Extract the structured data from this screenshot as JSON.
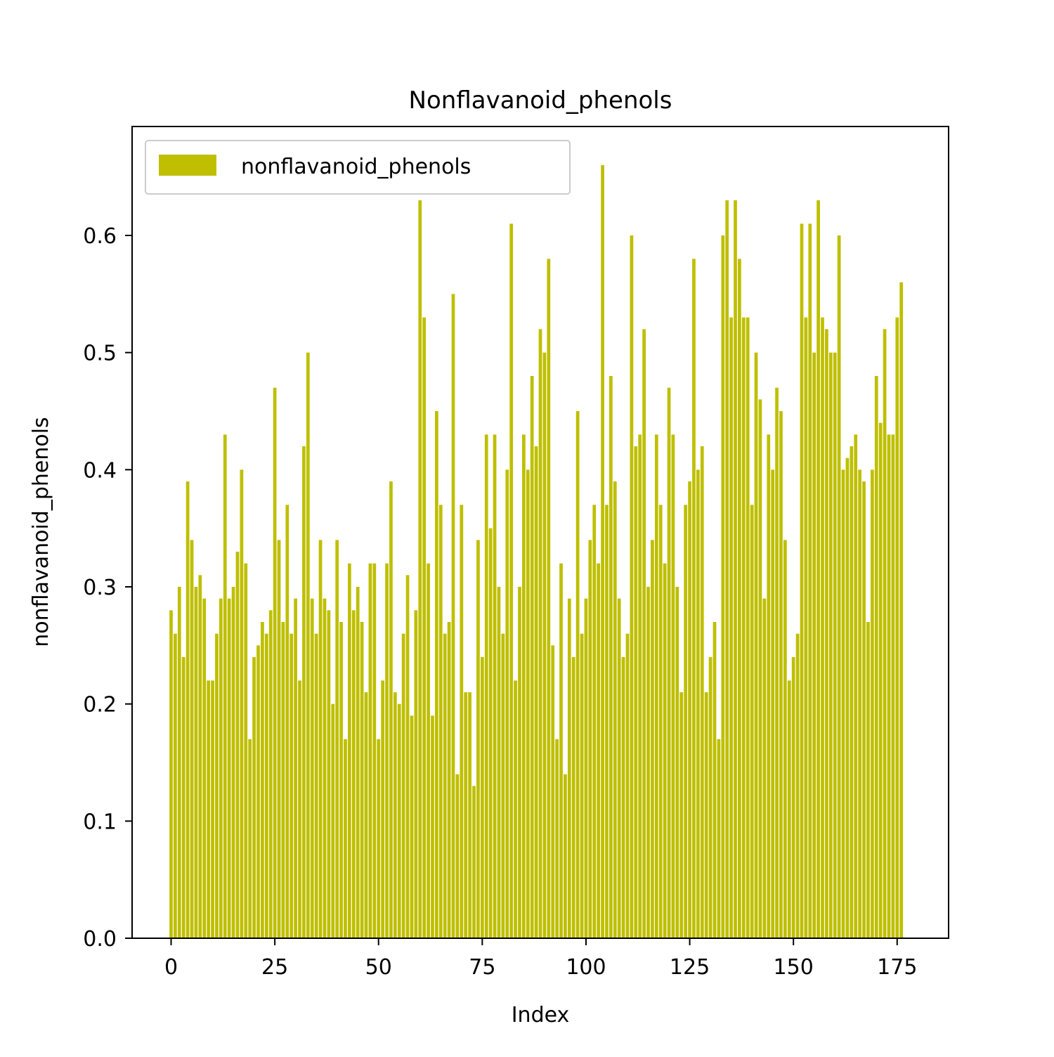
{
  "chart_data": {
    "type": "bar",
    "title": "Nonflavanoid_phenols",
    "xlabel": "Index",
    "ylabel": "nonflavanoid_phenols",
    "legend": {
      "label": "nonflavanoid_phenols",
      "placement": "top-left"
    },
    "bar_color": "#bfbf00",
    "xlim": [
      -9.4,
      187.4
    ],
    "ylim": [
      0,
      0.693
    ],
    "xticks": [
      0,
      25,
      50,
      75,
      100,
      125,
      150,
      175
    ],
    "yticks": [
      0.0,
      0.1,
      0.2,
      0.3,
      0.4,
      0.5,
      0.6
    ],
    "ytick_labels": [
      "0.0",
      "0.1",
      "0.2",
      "0.3",
      "0.4",
      "0.5",
      "0.6"
    ],
    "grid": false,
    "x": [
      0,
      1,
      2,
      3,
      4,
      5,
      6,
      7,
      8,
      9,
      10,
      11,
      12,
      13,
      14,
      15,
      16,
      17,
      18,
      19,
      20,
      21,
      22,
      23,
      24,
      25,
      26,
      27,
      28,
      29,
      30,
      31,
      32,
      33,
      34,
      35,
      36,
      37,
      38,
      39,
      40,
      41,
      42,
      43,
      44,
      45,
      46,
      47,
      48,
      49,
      50,
      51,
      52,
      53,
      54,
      55,
      56,
      57,
      58,
      59,
      60,
      61,
      62,
      63,
      64,
      65,
      66,
      67,
      68,
      69,
      70,
      71,
      72,
      73,
      74,
      75,
      76,
      77,
      78,
      79,
      80,
      81,
      82,
      83,
      84,
      85,
      86,
      87,
      88,
      89,
      90,
      91,
      92,
      93,
      94,
      95,
      96,
      97,
      98,
      99,
      100,
      101,
      102,
      103,
      104,
      105,
      106,
      107,
      108,
      109,
      110,
      111,
      112,
      113,
      114,
      115,
      116,
      117,
      118,
      119,
      120,
      121,
      122,
      123,
      124,
      125,
      126,
      127,
      128,
      129,
      130,
      131,
      132,
      133,
      134,
      135,
      136,
      137,
      138,
      139,
      140,
      141,
      142,
      143,
      144,
      145,
      146,
      147,
      148,
      149,
      150,
      151,
      152,
      153,
      154,
      155,
      156,
      157,
      158,
      159,
      160,
      161,
      162,
      163,
      164,
      165,
      166,
      167,
      168,
      169,
      170,
      171,
      172,
      173,
      174,
      175,
      176,
      177
    ],
    "values": [
      0.28,
      0.26,
      0.3,
      0.24,
      0.39,
      0.34,
      0.3,
      0.31,
      0.29,
      0.22,
      0.22,
      0.26,
      0.29,
      0.43,
      0.29,
      0.3,
      0.33,
      0.4,
      0.32,
      0.17,
      0.24,
      0.25,
      0.27,
      0.26,
      0.28,
      0.47,
      0.34,
      0.27,
      0.37,
      0.26,
      0.29,
      0.22,
      0.42,
      0.5,
      0.29,
      0.26,
      0.34,
      0.29,
      0.28,
      0.2,
      0.34,
      0.27,
      0.17,
      0.32,
      0.28,
      0.3,
      0.27,
      0.21,
      0.32,
      0.32,
      0.17,
      0.22,
      0.32,
      0.39,
      0.21,
      0.2,
      0.26,
      0.31,
      0.19,
      0.28,
      0.63,
      0.53,
      0.32,
      0.19,
      0.45,
      0.37,
      0.26,
      0.27,
      0.55,
      0.14,
      0.37,
      0.21,
      0.21,
      0.13,
      0.34,
      0.24,
      0.43,
      0.35,
      0.43,
      0.3,
      0.26,
      0.4,
      0.61,
      0.22,
      0.3,
      0.43,
      0.4,
      0.48,
      0.42,
      0.52,
      0.5,
      0.58,
      0.25,
      0.17,
      0.32,
      0.14,
      0.29,
      0.24,
      0.45,
      0.26,
      0.29,
      0.34,
      0.37,
      0.32,
      0.66,
      0.37,
      0.48,
      0.39,
      0.29,
      0.24,
      0.26,
      0.6,
      0.42,
      0.43,
      0.52,
      0.3,
      0.34,
      0.43,
      0.37,
      0.32,
      0.47,
      0.43,
      0.3,
      0.21,
      0.37,
      0.39,
      0.58,
      0.4,
      0.42,
      0.21,
      0.24,
      0.27,
      0.17,
      0.6,
      0.63,
      0.53,
      0.63,
      0.58,
      0.53,
      0.53,
      0.37,
      0.5,
      0.46,
      0.29,
      0.43,
      0.4,
      0.47,
      0.45,
      0.34,
      0.22,
      0.24,
      0.26,
      0.61,
      0.53,
      0.61,
      0.5,
      0.63,
      0.53,
      0.52,
      0.5,
      0.5,
      0.6,
      0.4,
      0.41,
      0.42,
      0.43,
      0.4,
      0.39,
      0.27,
      0.4,
      0.48,
      0.44,
      0.52,
      0.43,
      0.43,
      0.53,
      0.56,
      0.0
    ]
  }
}
